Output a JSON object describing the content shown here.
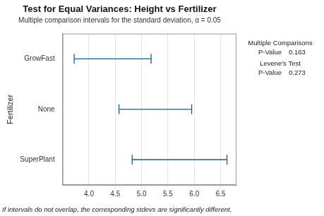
{
  "chart_data": {
    "type": "interval",
    "title": "Test for Equal Variances: Height vs Fertilizer",
    "subtitle": "Multiple comparison intervals for the standard deviation, α = 0.05",
    "y_label": "Fertilizer",
    "categories": [
      "GrowFast",
      "None",
      "SuperPlant"
    ],
    "lower": [
      3.72,
      4.57,
      4.82
    ],
    "upper": [
      5.18,
      5.95,
      6.62
    ],
    "color": "#1f5a8c",
    "xlim": [
      3.5,
      6.8
    ],
    "xticks": [
      {
        "value": 4,
        "label": "4.0"
      },
      4.5,
      {
        "value": 5,
        "label": "5.0"
      },
      5.5,
      {
        "value": 6,
        "label": "6.0"
      },
      6.5
    ],
    "grid": true,
    "side_panel": [
      {
        "heading": "Multiple Comparisons",
        "label": "P-Value",
        "value": 0.163
      },
      {
        "heading": "Levene's Test",
        "label": "P-Value",
        "value": 0.273
      }
    ],
    "note": "If intervals do not overlap, the corresponding stdevs are significantly different."
  }
}
